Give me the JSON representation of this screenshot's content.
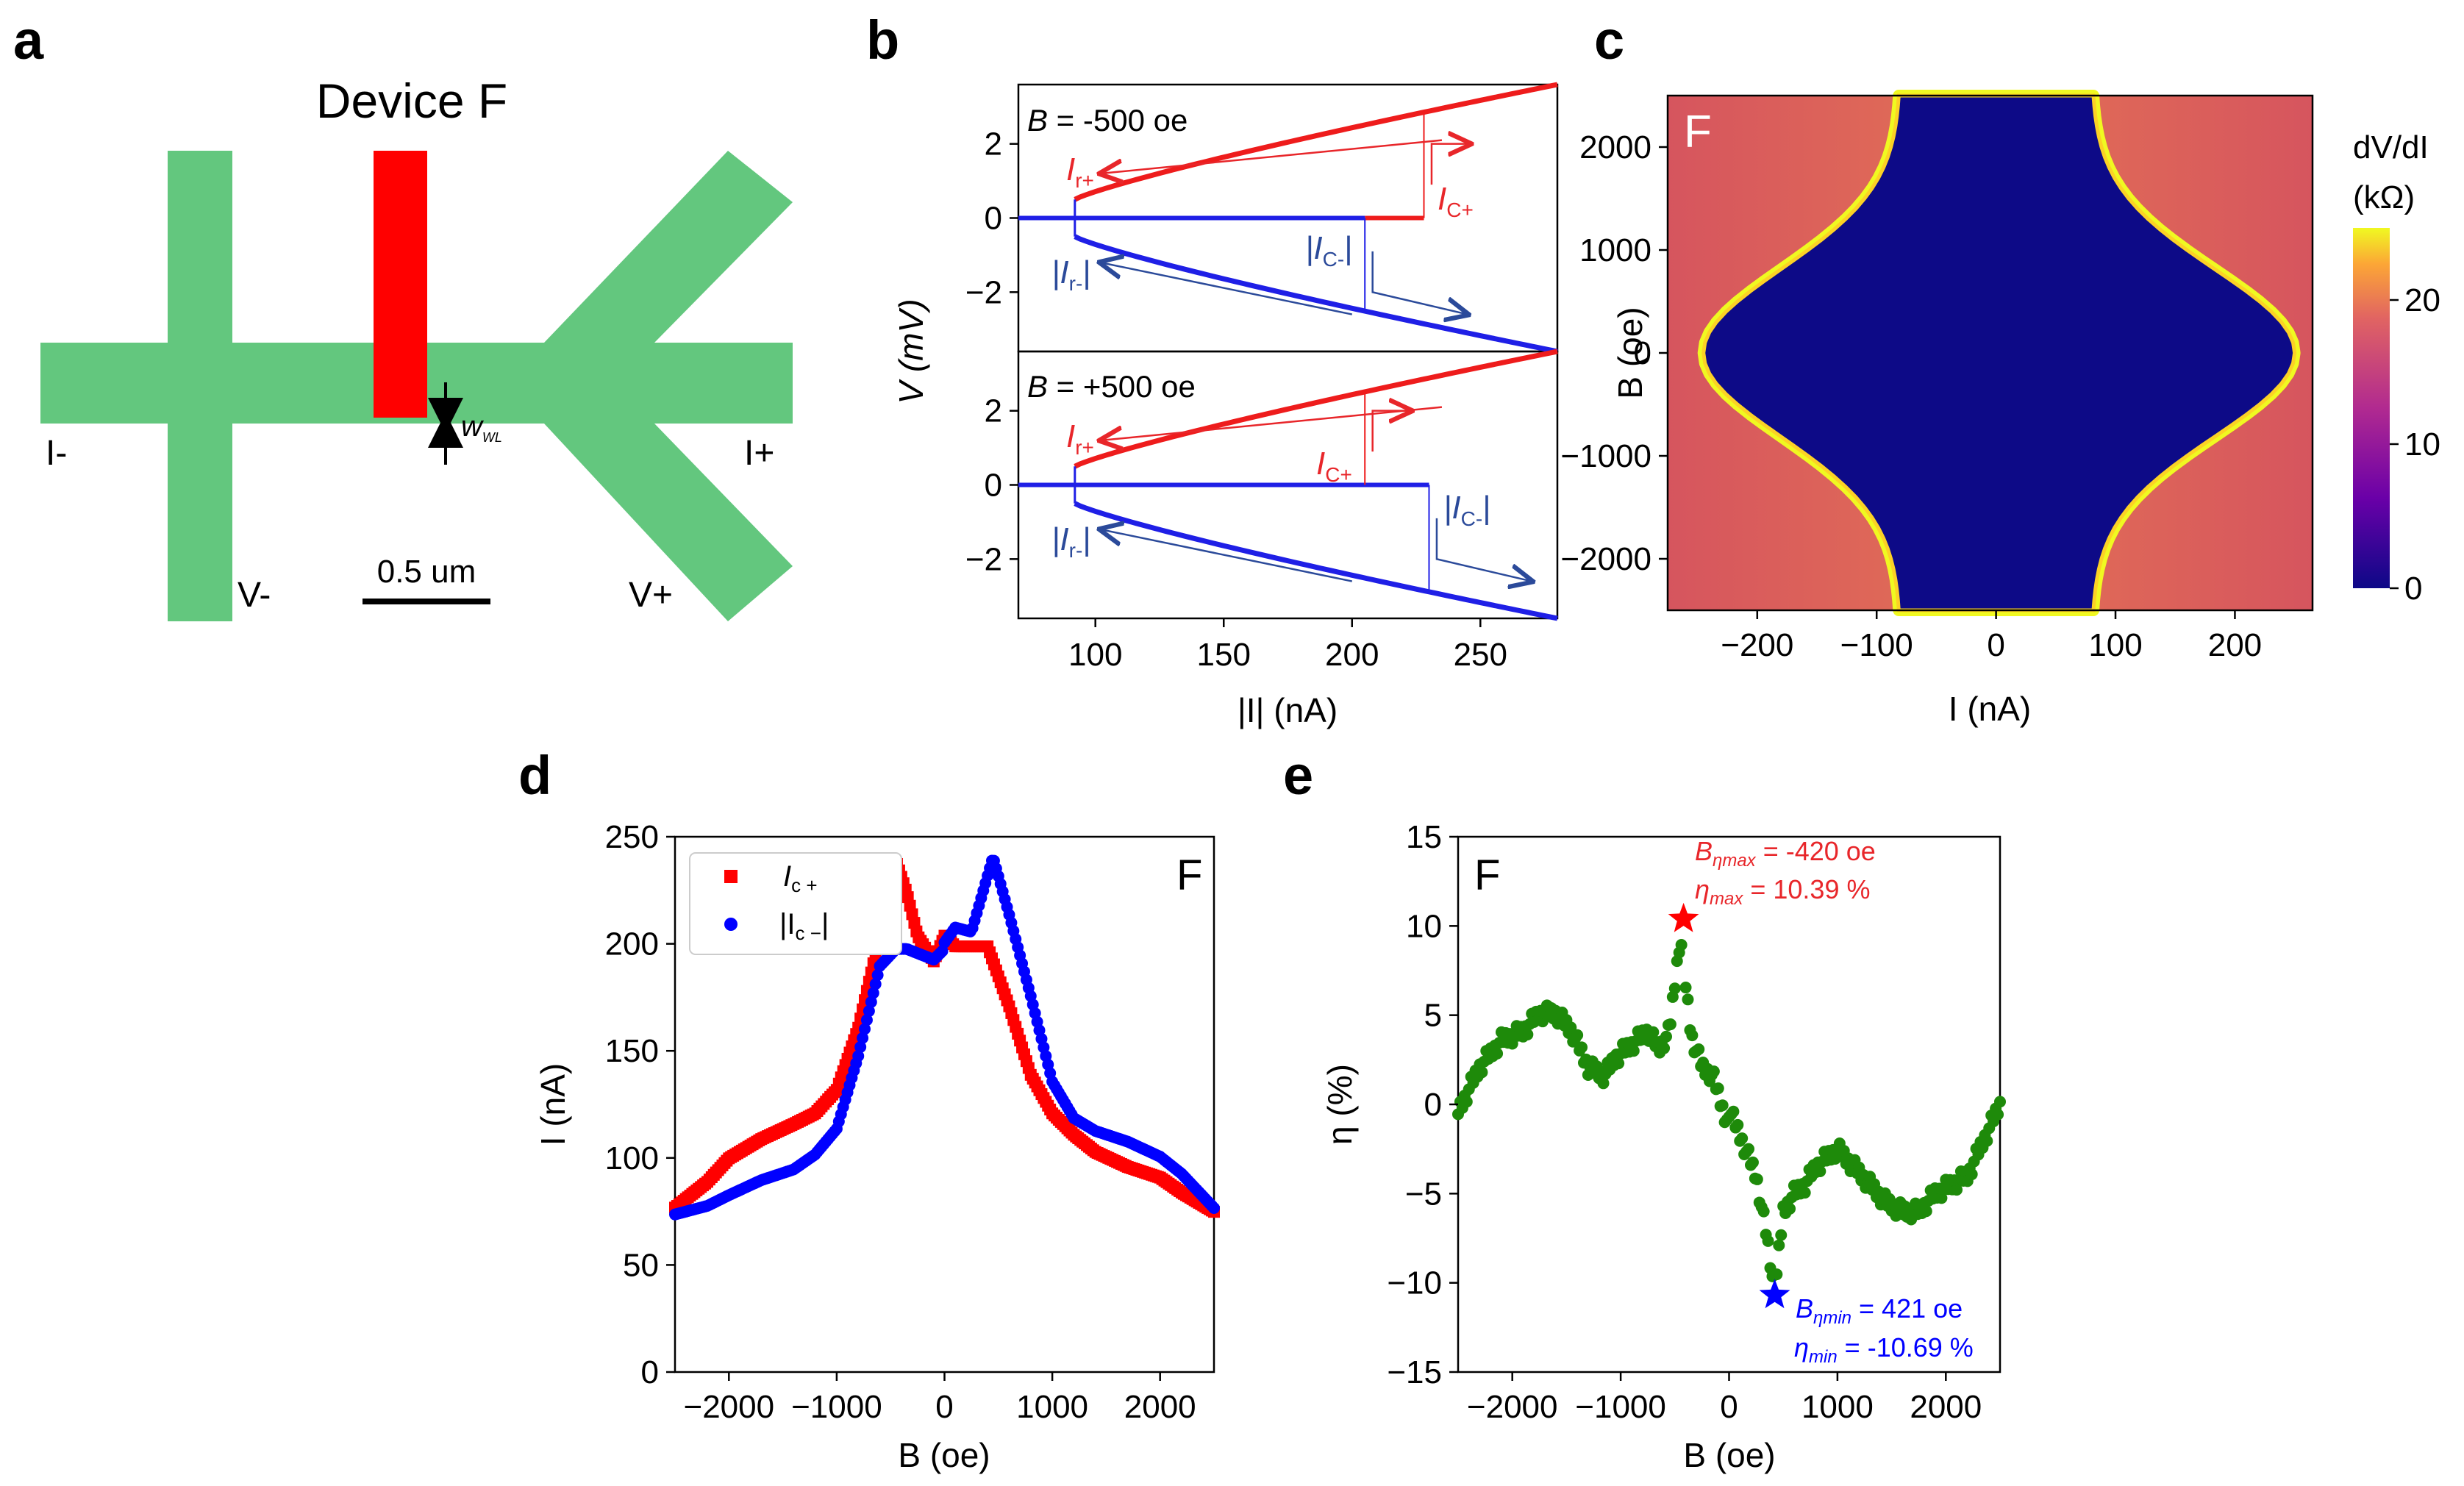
{
  "panels": {
    "a": "a",
    "b": "b",
    "c": "c",
    "d": "d",
    "e": "e"
  },
  "panel_a": {
    "title": "Device F",
    "label_iminus": "I-",
    "label_iplus": "I+",
    "label_vminus": "V-",
    "label_vplus": "V+",
    "scale_bar": "0.5 um",
    "width_label": "w",
    "width_sub": "WL",
    "colors": {
      "lead": "#63c77e",
      "gate": "#ff0000"
    }
  },
  "chart_data": [
    {
      "id": "b-top",
      "type": "line",
      "annotation": "B = -500 oe",
      "annotation_var": "B",
      "annotation_rest": " = -500 oe",
      "xlim": [
        70,
        280
      ],
      "ylim": [
        -3.6,
        3.6
      ],
      "yticks": [
        -2,
        0,
        2
      ],
      "labels": {
        "ir": "I",
        "ir_sub": "r+",
        "ic": "I",
        "ic_sub": "C+",
        "irm": "|I",
        "irm_sub": "r-",
        "irm_end": "|",
        "icm": "|I",
        "icm_sub": "C-",
        "icm_end": "|"
      },
      "critical": {
        "ic_plus": 228,
        "ic_minus": 205,
        "ir": 92
      }
    },
    {
      "id": "b-bottom",
      "type": "line",
      "annotation": "B = +500 oe",
      "annotation_var": "B",
      "annotation_rest": " = +500 oe",
      "xlim": [
        70,
        280
      ],
      "ylim": [
        -3.6,
        3.6
      ],
      "yticks": [
        -2,
        0,
        2
      ],
      "xticks": [
        100,
        150,
        200,
        250
      ],
      "xlabel": "|I| (nA)",
      "ylabel": "V (mV)",
      "labels": {
        "ir": "I",
        "ir_sub": "r+",
        "ic": "I",
        "ic_sub": "C+",
        "irm": "|I",
        "irm_sub": "r-",
        "irm_end": "|",
        "icm": "|I",
        "icm_sub": "C-",
        "icm_end": "|"
      },
      "critical": {
        "ic_plus": 205,
        "ic_minus": 230,
        "ir": 92
      }
    },
    {
      "id": "c",
      "type": "heatmap",
      "corner_label": "F",
      "xlim": [
        -275,
        265
      ],
      "ylim": [
        -2500,
        2500
      ],
      "xticks": [
        -200,
        -100,
        0,
        100,
        200
      ],
      "yticks": [
        -2000,
        -1000,
        0,
        1000,
        2000
      ],
      "xlabel": "I (nA)",
      "ylabel": "B (oe)",
      "colorbar": {
        "label1": "dV/dI",
        "label2": "(kΩ)",
        "ticks": [
          0,
          10,
          20
        ],
        "range": [
          0,
          25
        ]
      }
    },
    {
      "id": "d",
      "type": "scatter",
      "corner_label": "F",
      "xlim": [
        -2500,
        2500
      ],
      "ylim": [
        0,
        250
      ],
      "xticks": [
        -2000,
        -1000,
        0,
        1000,
        2000
      ],
      "yticks": [
        0,
        50,
        100,
        150,
        200,
        250
      ],
      "xlabel": "B (oe)",
      "ylabel": "I (nA)",
      "series": [
        {
          "name": "Ic+",
          "label_main": "I",
          "label_sub": "c +",
          "color": "#ff0000",
          "marker": "square",
          "x": [
            -2500,
            -2200,
            -2000,
            -1700,
            -1400,
            -1200,
            -1000,
            -800,
            -600,
            -450,
            -350,
            -250,
            -100,
            0,
            100,
            250,
            400,
            600,
            800,
            1000,
            1200,
            1400,
            1700,
            2000,
            2200,
            2500
          ],
          "y": [
            78,
            90,
            101,
            110,
            117,
            122,
            133,
            162,
            205,
            240,
            225,
            205,
            193,
            205,
            200,
            200,
            200,
            172,
            140,
            122,
            112,
            104,
            97,
            92,
            85,
            76
          ]
        },
        {
          "name": "|Ic-|",
          "label_main": "|I",
          "label_sub": "c −",
          "label_end": "|",
          "color": "#0000ff",
          "marker": "circle",
          "x": [
            -2500,
            -2200,
            -2000,
            -1700,
            -1400,
            -1200,
            -1000,
            -800,
            -600,
            -450,
            -350,
            -250,
            -100,
            0,
            100,
            250,
            450,
            600,
            800,
            1000,
            1200,
            1400,
            1700,
            2000,
            2200,
            2500
          ],
          "y": [
            76,
            80,
            85,
            92,
            97,
            104,
            116,
            150,
            192,
            200,
            200,
            198,
            195,
            200,
            207,
            205,
            240,
            213,
            175,
            135,
            118,
            112,
            107,
            100,
            92,
            76
          ]
        }
      ]
    },
    {
      "id": "e",
      "type": "scatter",
      "corner_label": "F",
      "xlim": [
        -2500,
        2500
      ],
      "ylim": [
        -15,
        15
      ],
      "xticks": [
        -2000,
        -1000,
        0,
        1000,
        2000
      ],
      "yticks": [
        -15,
        -10,
        -5,
        0,
        5,
        10,
        15
      ],
      "xlabel": "B (oe)",
      "ylabel": "η (%)",
      "series": [
        {
          "name": "eta",
          "color": "#1e8a0a",
          "x": [
            -2500,
            -2300,
            -2100,
            -1900,
            -1750,
            -1600,
            -1450,
            -1300,
            -1150,
            -1050,
            -950,
            -850,
            -750,
            -650,
            -550,
            -450,
            -350,
            -250,
            -150,
            -50,
            50,
            150,
            250,
            350,
            420,
            500,
            600,
            700,
            800,
            900,
            1000,
            1150,
            1300,
            1450,
            1600,
            1750,
            1900,
            2050,
            2200,
            2350,
            2500
          ],
          "y": [
            0.5,
            3,
            4.5,
            5,
            6,
            6,
            5,
            3,
            2.5,
            3.5,
            4,
            4.5,
            5,
            4,
            5,
            10.4,
            4.8,
            3,
            2.5,
            0.5,
            -1,
            -2.5,
            -4,
            -7.5,
            -10.7,
            -6,
            -5,
            -4.5,
            -3.5,
            -3,
            -2.5,
            -3.5,
            -4.5,
            -5.5,
            -6,
            -6,
            -5,
            -4.5,
            -4,
            -2,
            0
          ]
        }
      ],
      "annotations": {
        "max_line1_var": "B",
        "max_line1_sub": "ηmax",
        "max_line1_rest": " = -420 oe",
        "max_line2_var": "η",
        "max_line2_sub": "max",
        "max_line2_rest": " = 10.39 %",
        "min_line1_var": "B",
        "min_line1_sub": "ηmin",
        "min_line1_rest": " = 421 oe",
        "min_line2_var": "η",
        "min_line2_sub": "min",
        "min_line2_rest": " = -10.69 %",
        "max_point": {
          "x": -420,
          "y": 10.39
        },
        "min_point": {
          "x": 421,
          "y": -10.69
        }
      }
    }
  ]
}
